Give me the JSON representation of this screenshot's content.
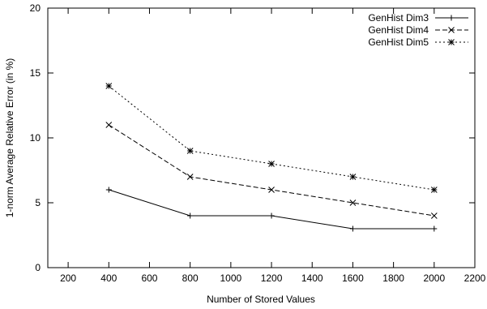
{
  "chart_data": {
    "type": "line",
    "title": "",
    "xlabel": "Number of Stored Values",
    "ylabel": "1-norm Average Relative Error (in %)",
    "xlim": [
      100,
      2200
    ],
    "ylim": [
      0,
      20
    ],
    "xticks": [
      200,
      400,
      600,
      800,
      1000,
      1200,
      1400,
      1600,
      1800,
      2000,
      2200
    ],
    "yticks": [
      0,
      5,
      10,
      15,
      20
    ],
    "grid": false,
    "legend_position": "top-right",
    "x": [
      400,
      800,
      1200,
      1600,
      2000
    ],
    "series": [
      {
        "name": "GenHist Dim3",
        "values": [
          6,
          4,
          4,
          3,
          3
        ],
        "line_style": "solid",
        "marker": "plus"
      },
      {
        "name": "GenHist Dim4",
        "values": [
          11,
          7,
          6,
          5,
          4
        ],
        "line_style": "dashed",
        "marker": "cross"
      },
      {
        "name": "GenHist Dim5",
        "values": [
          14,
          9,
          8,
          7,
          6
        ],
        "line_style": "dotted",
        "marker": "asterisk"
      }
    ]
  }
}
